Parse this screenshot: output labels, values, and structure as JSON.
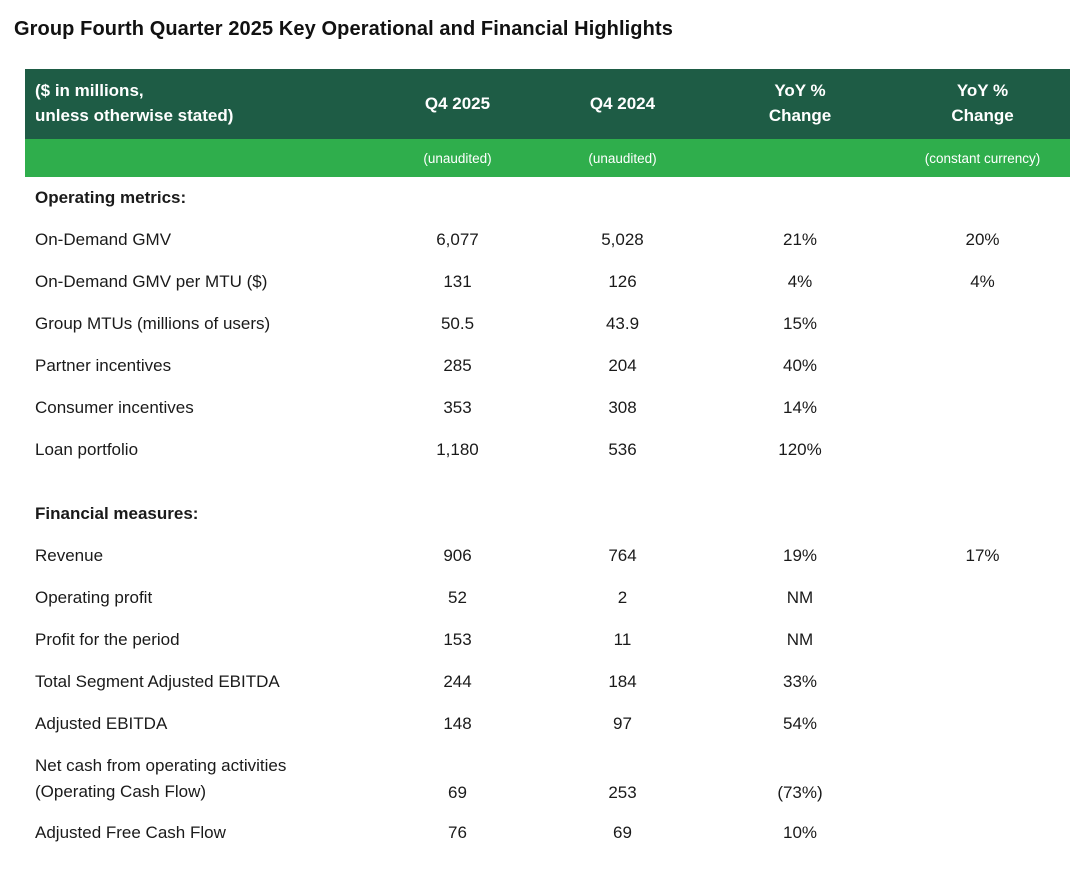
{
  "page_title": "Group Fourth Quarter 2025 Key Operational and Financial Highlights",
  "colors": {
    "header_dark_green": "#1e5c45",
    "header_light_green": "#2fae4c",
    "header_text": "#ffffff",
    "body_text": "#1a1a1a"
  },
  "table": {
    "header": {
      "metric_line1": "($ in millions,",
      "metric_line2": "unless otherwise stated)",
      "q4_2025": "Q4 2025",
      "q4_2024": "Q4 2024",
      "yoy_line1": "YoY %",
      "yoy_line2": "Change",
      "yoy_cc_line1": "YoY %",
      "yoy_cc_line2": "Change"
    },
    "subheader": {
      "metric": "",
      "q4_2025": "(unaudited)",
      "q4_2024": "(unaudited)",
      "yoy": "",
      "yoy_cc": "(constant currency)"
    },
    "sections": [
      {
        "title": "Operating metrics:",
        "rows": [
          {
            "label": "On-Demand GMV",
            "q4_2025": "6,077",
            "q4_2024": "5,028",
            "yoy": "21%",
            "yoy_cc": "20%"
          },
          {
            "label": "On-Demand GMV per MTU ($)",
            "q4_2025": "131",
            "q4_2024": "126",
            "yoy": "4%",
            "yoy_cc": "4%"
          },
          {
            "label": "Group MTUs (millions of users)",
            "q4_2025": "50.5",
            "q4_2024": "43.9",
            "yoy": "15%",
            "yoy_cc": ""
          },
          {
            "label": "Partner incentives",
            "q4_2025": "285",
            "q4_2024": "204",
            "yoy": "40%",
            "yoy_cc": ""
          },
          {
            "label": "Consumer incentives",
            "q4_2025": "353",
            "q4_2024": "308",
            "yoy": "14%",
            "yoy_cc": ""
          },
          {
            "label": "Loan portfolio",
            "q4_2025": "1,180",
            "q4_2024": "536",
            "yoy": "120%",
            "yoy_cc": ""
          }
        ]
      },
      {
        "title": "Financial measures:",
        "rows": [
          {
            "label": "Revenue",
            "q4_2025": "906",
            "q4_2024": "764",
            "yoy": "19%",
            "yoy_cc": "17%"
          },
          {
            "label": "Operating profit",
            "q4_2025": "52",
            "q4_2024": "2",
            "yoy": "NM",
            "yoy_cc": ""
          },
          {
            "label": "Profit for the period",
            "q4_2025": "153",
            "q4_2024": "11",
            "yoy": "NM",
            "yoy_cc": ""
          },
          {
            "label": "Total Segment Adjusted EBITDA",
            "q4_2025": "244",
            "q4_2024": "184",
            "yoy": "33%",
            "yoy_cc": ""
          },
          {
            "label": "Adjusted EBITDA",
            "q4_2025": "148",
            "q4_2024": "97",
            "yoy": "54%",
            "yoy_cc": ""
          },
          {
            "label_line1": "Net cash from operating activities",
            "label_line2": "(Operating Cash Flow)",
            "q4_2025": "69",
            "q4_2024": "253",
            "yoy": "(73%)",
            "yoy_cc": ""
          },
          {
            "label": "Adjusted Free Cash Flow",
            "q4_2025": "76",
            "q4_2024": "69",
            "yoy": "10%",
            "yoy_cc": ""
          }
        ]
      }
    ]
  }
}
